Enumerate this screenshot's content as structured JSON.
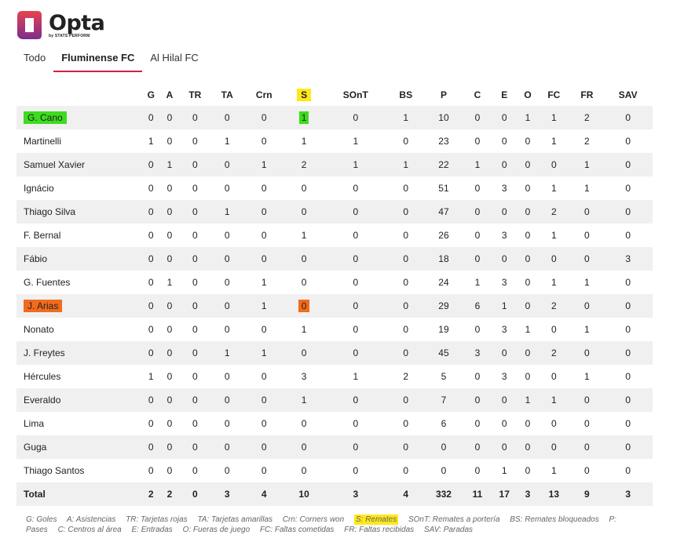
{
  "logo": {
    "word": "Opta",
    "sub": "by STATS PERFORM",
    "colors": {
      "top": "#e8434f",
      "bottom": "#7b2d8e"
    }
  },
  "tabs": [
    {
      "label": "Todo",
      "active": false
    },
    {
      "label": "Fluminense FC",
      "active": true
    },
    {
      "label": "Al Hilal FC",
      "active": false
    }
  ],
  "table": {
    "headers": [
      "G",
      "A",
      "TR",
      "TA",
      "Crn",
      "S",
      "SOnT",
      "BS",
      "P",
      "C",
      "E",
      "O",
      "FC",
      "FR",
      "SAV"
    ],
    "rows": [
      {
        "name": "G. Cano",
        "values": [
          "0",
          "0",
          "0",
          "0",
          "0",
          "1",
          "0",
          "1",
          "10",
          "0",
          "0",
          "1",
          "1",
          "2",
          "0"
        ]
      },
      {
        "name": "Martinelli",
        "values": [
          "1",
          "0",
          "0",
          "1",
          "0",
          "1",
          "1",
          "0",
          "23",
          "0",
          "0",
          "0",
          "1",
          "2",
          "0"
        ]
      },
      {
        "name": "Samuel Xavier",
        "values": [
          "0",
          "1",
          "0",
          "0",
          "1",
          "2",
          "1",
          "1",
          "22",
          "1",
          "0",
          "0",
          "0",
          "1",
          "0"
        ]
      },
      {
        "name": "Ignácio",
        "values": [
          "0",
          "0",
          "0",
          "0",
          "0",
          "0",
          "0",
          "0",
          "51",
          "0",
          "3",
          "0",
          "1",
          "1",
          "0"
        ]
      },
      {
        "name": "Thiago Silva",
        "values": [
          "0",
          "0",
          "0",
          "1",
          "0",
          "0",
          "0",
          "0",
          "47",
          "0",
          "0",
          "0",
          "2",
          "0",
          "0"
        ]
      },
      {
        "name": "F. Bernal",
        "values": [
          "0",
          "0",
          "0",
          "0",
          "0",
          "1",
          "0",
          "0",
          "26",
          "0",
          "3",
          "0",
          "1",
          "0",
          "0"
        ]
      },
      {
        "name": "Fábio",
        "values": [
          "0",
          "0",
          "0",
          "0",
          "0",
          "0",
          "0",
          "0",
          "18",
          "0",
          "0",
          "0",
          "0",
          "0",
          "3"
        ]
      },
      {
        "name": "G. Fuentes",
        "values": [
          "0",
          "1",
          "0",
          "0",
          "1",
          "0",
          "0",
          "0",
          "24",
          "1",
          "3",
          "0",
          "1",
          "1",
          "0"
        ]
      },
      {
        "name": "J. Arias",
        "values": [
          "0",
          "0",
          "0",
          "0",
          "1",
          "0",
          "0",
          "0",
          "29",
          "6",
          "1",
          "0",
          "2",
          "0",
          "0"
        ]
      },
      {
        "name": "Nonato",
        "values": [
          "0",
          "0",
          "0",
          "0",
          "0",
          "1",
          "0",
          "0",
          "19",
          "0",
          "3",
          "1",
          "0",
          "1",
          "0"
        ]
      },
      {
        "name": "J. Freytes",
        "values": [
          "0",
          "0",
          "0",
          "1",
          "1",
          "0",
          "0",
          "0",
          "45",
          "3",
          "0",
          "0",
          "2",
          "0",
          "0"
        ]
      },
      {
        "name": "Hércules",
        "values": [
          "1",
          "0",
          "0",
          "0",
          "0",
          "3",
          "1",
          "2",
          "5",
          "0",
          "3",
          "0",
          "0",
          "1",
          "0"
        ]
      },
      {
        "name": "Everaldo",
        "values": [
          "0",
          "0",
          "0",
          "0",
          "0",
          "1",
          "0",
          "0",
          "7",
          "0",
          "0",
          "1",
          "1",
          "0",
          "0"
        ]
      },
      {
        "name": "Lima",
        "values": [
          "0",
          "0",
          "0",
          "0",
          "0",
          "0",
          "0",
          "0",
          "6",
          "0",
          "0",
          "0",
          "0",
          "0",
          "0"
        ]
      },
      {
        "name": "Guga",
        "values": [
          "0",
          "0",
          "0",
          "0",
          "0",
          "0",
          "0",
          "0",
          "0",
          "0",
          "0",
          "0",
          "0",
          "0",
          "0"
        ]
      },
      {
        "name": "Thiago Santos",
        "values": [
          "0",
          "0",
          "0",
          "0",
          "0",
          "0",
          "0",
          "0",
          "0",
          "0",
          "1",
          "0",
          "1",
          "0",
          "0"
        ]
      }
    ],
    "total": {
      "label": "Total",
      "values": [
        "2",
        "2",
        "0",
        "3",
        "4",
        "10",
        "3",
        "4",
        "332",
        "11",
        "17",
        "3",
        "13",
        "9",
        "3"
      ]
    }
  },
  "highlights": {
    "green": "#3ddc1e",
    "orange": "#f26b1d",
    "yellow": "#ffe81a",
    "green_row": "G. Cano",
    "orange_row": "J. Arias",
    "yellow_header": "S"
  },
  "legend": [
    "G: Goles",
    "A: Asistencias",
    "TR: Tarjetas rojas",
    "TA: Tarjetas amarillas",
    "Crn: Corners won",
    "S: Remates",
    "SOnT: Remates a portería",
    "BS: Remates bloqueados",
    "P: Pases",
    "C: Centros al área",
    "E: Entradas",
    "O: Fueras de juego",
    "FC: Faltas cometidas",
    "FR: Faltas recibidas",
    "SAV: Paradas"
  ]
}
